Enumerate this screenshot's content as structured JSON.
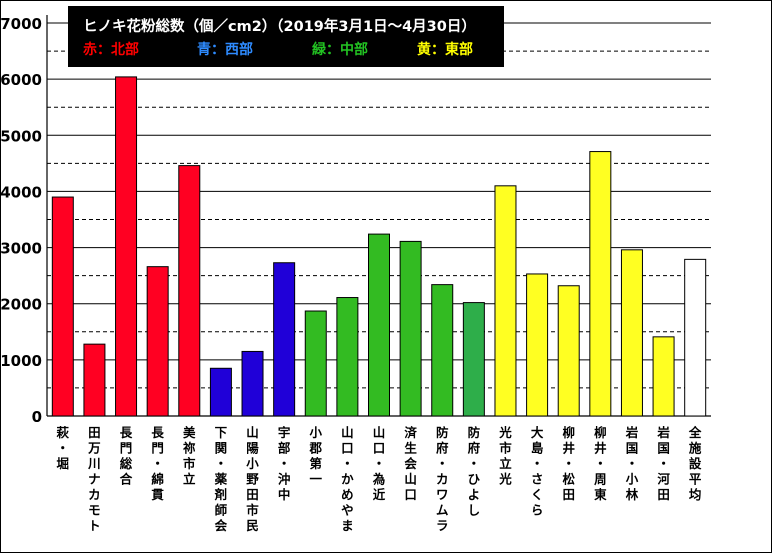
{
  "chart_data": {
    "type": "bar",
    "title": "ヒノキ花粉総数（個／cm2）（2019年3月1日～4月30日）",
    "legend": [
      {
        "text": "赤：北部",
        "color": "#ff0000"
      },
      {
        "text": "青：西部",
        "color": "#2e8bff"
      },
      {
        "text": "緑：中部",
        "color": "#22c322"
      },
      {
        "text": "黄：東部",
        "color": "#ffff00"
      }
    ],
    "categories": [
      "萩・堀",
      "田万川ナカモト",
      "長門総合",
      "長門・綿貫",
      "美祢市立",
      "下関・薬剤師会",
      "山陽小野田市民",
      "宇部・沖中",
      "小郡第一",
      "山口・かめやま",
      "山口・為近",
      "済生会山口",
      "防府・カワムラ",
      "防府・ひよし",
      "光市立光",
      "大島・さくら",
      "柳井・松田",
      "柳井・周東",
      "岩国・小林",
      "岩国・河田",
      "全施設平均"
    ],
    "values": [
      3900,
      1280,
      6040,
      2660,
      4460,
      850,
      1150,
      2730,
      1870,
      2110,
      3240,
      3110,
      2340,
      2020,
      4100,
      2530,
      2320,
      4710,
      2960,
      1410,
      2790
    ],
    "colors": [
      "#ff0022",
      "#ff0022",
      "#ff0022",
      "#ff0022",
      "#ff0022",
      "#2000d8",
      "#2000d8",
      "#2000d8",
      "#33bb22",
      "#33bb22",
      "#33bb22",
      "#33bb22",
      "#33bb22",
      "#2eae4a",
      "#ffff22",
      "#ffff22",
      "#ffff22",
      "#ffff22",
      "#ffff22",
      "#ffff22",
      "#ffffff"
    ],
    "ylim": [
      0,
      7000
    ],
    "yticks": [
      0,
      1000,
      2000,
      3000,
      4000,
      5000,
      6000,
      7000
    ],
    "minor_gridlines": [
      500,
      1500,
      2500,
      3500,
      4500,
      5500,
      6500
    ],
    "grid": true,
    "legend_placement": "top-left inside"
  }
}
